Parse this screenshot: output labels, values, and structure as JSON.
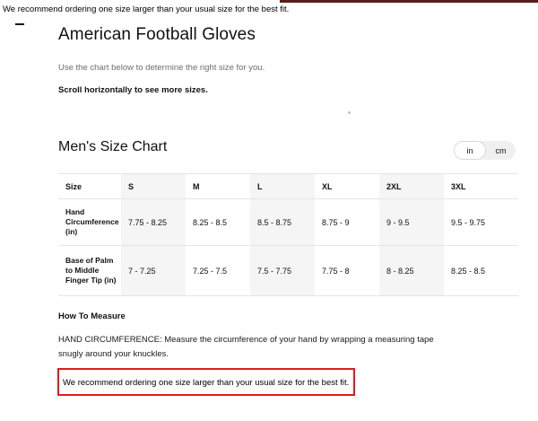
{
  "annotation": {
    "top_text": "We recommend ordering one size larger than your usual size for the best fit."
  },
  "page": {
    "title": "American Football Gloves",
    "subtitle": "Use the chart below to determine the right size for you.",
    "scroll_note": "Scroll horizontally to see more sizes."
  },
  "size_chart": {
    "heading": "Men's Size Chart",
    "units": {
      "in": "in",
      "cm": "cm",
      "selected": "in"
    },
    "table": {
      "columns": [
        "Size",
        "S",
        "M",
        "L",
        "XL",
        "2XL",
        "3XL"
      ],
      "rows": [
        {
          "label": "Hand Circumference (in)",
          "values": [
            "7.75 - 8.25",
            "8.25 - 8.5",
            "8.5 - 8.75",
            "8.75 - 9",
            "9 - 9.5",
            "9.5 - 9.75"
          ]
        },
        {
          "label": "Base of Palm to Middle Finger Tip (in)",
          "values": [
            "7 - 7.25",
            "7.25 - 7.5",
            "7.5 - 7.75",
            "7.75 - 8",
            "8 - 8.25",
            "8.25 - 8.5"
          ]
        }
      ]
    }
  },
  "how_to_measure": {
    "heading": "How To Measure",
    "body": "HAND CIRCUMFERENCE: Measure the circumference of your hand by wrapping a measuring tape snugly around your knuckles.",
    "note": "We recommend ordering one size larger than your usual size for the best fit."
  },
  "colors": {
    "highlight_red": "#e11b1b",
    "clipped_line_red": "#571d1d",
    "table_alt_column": "#f5f5f5",
    "border_gray": "#e5e5e5",
    "subtitle_gray": "#6e6e73"
  }
}
